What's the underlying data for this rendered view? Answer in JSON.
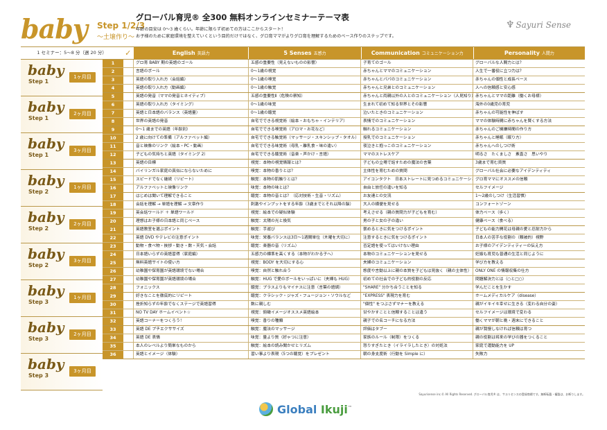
{
  "header": {
    "brand": "baby",
    "step": "Step 1/2/3",
    "subtitle": "〜土壌作り〜",
    "title": "グローバル育児® 全300 無料オンラインセミナーテーマ表",
    "desc1": "年齢の目安は 0〜3 歳くらい。年齢に限らず初めての方はここからスタート！",
    "desc2": "お子様のために家庭環境を整えていくという目的だけではなく、グロ育ママがよりグロ育を理解するためのベース作りのステップです。",
    "logo": "Sayuri Sense"
  },
  "table": {
    "week_label": "1 セミナー：5〜8 分（週 20 分）",
    "check": "✓",
    "categories": [
      {
        "en": "English",
        "jp": "英語力"
      },
      {
        "en": "5 Senses",
        "jp": "五感力"
      },
      {
        "en": "Communication",
        "jp": "コミュニケーション力"
      },
      {
        "en": "Personality",
        "jp": "人間力"
      }
    ],
    "groups": [
      {
        "baby": "baby",
        "step": "Step 1",
        "month": "1ヶ月目"
      },
      {
        "baby": "baby",
        "step": "Step 1",
        "month": "2ヶ月目"
      },
      {
        "baby": "baby",
        "step": "Step 1",
        "month": "3ヶ月目"
      },
      {
        "baby": "baby",
        "step": "Step 2",
        "month": "1ヶ月目"
      },
      {
        "baby": "baby",
        "step": "Step 2",
        "month": "2ヶ月目"
      },
      {
        "baby": "baby",
        "step": "Step 2",
        "month": "3ヶ月目"
      },
      {
        "baby": "baby",
        "step": "Step 3",
        "month": "1ヶ月目"
      },
      {
        "baby": "baby",
        "step": "Step 3",
        "month": "2ヶ月目"
      },
      {
        "baby": "baby",
        "step": "Step 3",
        "month": "3ヶ月目"
      }
    ],
    "rows": [
      {
        "n": "1",
        "e": "グロ育 BABY 期の英語のゴール",
        "s": "五感の重要性（見えないものの影響）",
        "c": "子育てのゴール",
        "p": "グローバルな人間力とは？"
      },
      {
        "n": "2",
        "e": "言語のボール",
        "s": "0〜1歳の視覚",
        "c": "赤ちゃんとママのコミュニケーション",
        "p": "人生で一番役に立つ力は？"
      },
      {
        "n": "3",
        "e": "英語の取り入れ方（会話編）",
        "s": "0〜1歳の嗅覚",
        "c": "赤ちゃんとパパのコミュニケーション",
        "p": "赤ちゃんの個性と成長ペース"
      },
      {
        "n": "4",
        "e": "英語の取り入れ方（動画編）",
        "s": "0〜1歳の触覚",
        "c": "赤ちゃんと兄弟とのコミュニケーション",
        "p": "人への信頼感と安心感"
      },
      {
        "n": "5",
        "e": "英語の発音（ママの発音とネイティブ）",
        "s": "五感の重要性Ⅱ（危険の察知）",
        "c": "赤ちゃんと両親以外の人とのコミュニケーション（人見知り）",
        "p": "赤ちゃんとママの距離（働くお母様）"
      },
      {
        "n": "6",
        "e": "英語の取り入れ方（タイミング）",
        "s": "0〜1歳の味覚",
        "c": "生まれて初めて知る世界とその影響",
        "p": "海外の0歳児の育児"
      },
      {
        "n": "7",
        "e": "英語と日本語のバランス（英語量）",
        "s": "0〜1歳の聴覚",
        "c": "泣いたときのコミュニケーション",
        "p": "赤ちゃんの可能性を伸ばす"
      },
      {
        "n": "8",
        "e": "世界の英語の発音",
        "s": "自宅でできる視覚術（絵本・おもちゃ・インテリア）",
        "c": "表情でのコミュニケーション",
        "p": "ママの体験時間に赤ちゃんを賢くする方法"
      },
      {
        "n": "9",
        "e": "0〜1 歳までの英語（年齢別）",
        "s": "自宅でできる嗅覚術（アロマ・お花など）",
        "c": "触れるコミュニケーション",
        "p": "赤ちゃんのご機嫌時間の作り方"
      },
      {
        "n": "10",
        "e": "2 歳に向けての準備（アルファベット編）",
        "s": "自宅でできる触覚術（マッサージ・スキンシップ・タオル）",
        "c": "授乳でのコミュニケーション",
        "p": "赤ちゃんと睡眠（眠り方）"
      },
      {
        "n": "11",
        "e": "音と映像のリンク（絵本・PC・動画）",
        "s": "自宅でできる味覚術（母乳・離乳食・味の違い）",
        "c": "夜泣きと抱っこのコミュニケーション",
        "p": "赤ちゃんへのしつけ術"
      },
      {
        "n": "12",
        "e": "子どもの気持ちと英語（タイミング 2）",
        "s": "自宅でできる聴覚術（音楽・声かけ・言語）",
        "c": "ママのストレスケア",
        "p": "明るさ　たくましさ　素直さ　思いやり"
      },
      {
        "n": "13",
        "e": "英語の目標",
        "s": "視覚：本物の視覚情報とは？",
        "c": "子どもの立場で話すための魔法の言葉",
        "p": "3歳まで育む資質"
      },
      {
        "n": "14",
        "e": "バイリンガル家庭の真似にならないために",
        "s": "嗅覚：本物の香りとは？",
        "c": "主体性を育むための質問",
        "p": "グローバル社会に必要なアイデンティティ"
      },
      {
        "n": "15",
        "e": "スピードでなく継続（リピート）",
        "s": "触覚：本物の肌触りとは？",
        "c": "アイコンタクト　日本ストレートに見つめるコミュニケーション",
        "p": "グロ育ママにオススメの信頼"
      },
      {
        "n": "16",
        "e": "アルファベットと映像リンク",
        "s": "味覚：本物の味とは？",
        "c": "自由と放任の違いを知る",
        "p": "セルフイメージ"
      },
      {
        "n": "17",
        "e": "はじめは聞いて理解できること",
        "s": "聴覚：本物の音とは？（応対技術・生音・リズム）",
        "c": "お友達との交流",
        "p": "1〜2歳のしつけ（生活習慣）"
      },
      {
        "n": "18",
        "e": "会話を理解 → 単語を理解 → 文章作り",
        "s": "刺激やインプットをする年齢（3歳までとそれ以降の脳）",
        "c": "大人の横便を見せる",
        "p": "コンフォートゾーン"
      },
      {
        "n": "19",
        "e": "英会話ワールド ＋ 単語ワールド",
        "s": "視覚：絵本での疑似体験",
        "c": "考えさせる（親の質問力が子どもを育む）",
        "p": "体力ベース（歩く）"
      },
      {
        "n": "20",
        "e": "理想はお子様の日本語と同じペース",
        "s": "触覚：太陽の光と換気",
        "c": "男の子と女の子の違い",
        "p": "健康ベース（食べる）"
      },
      {
        "n": "21",
        "e": "英語教室を選ぶポイント",
        "s": "触覚：手遊び",
        "c": "褒めるときに気をつけるポイント",
        "p": "子どもの能力開花は母親の愛と忍耐力から"
      },
      {
        "n": "22",
        "e": "英語 DVD やテレビの注意ポイント",
        "s": "味覚：栄養バランスは3日〜1週間単位（木曜を大切に）",
        "c": "注意するときに気をつけるポイント",
        "p": "日本人の苦手な役割の（頼被的）視野"
      },
      {
        "n": "23",
        "e": "動物・食べ物・挨拶・動き・数・天気・会話",
        "s": "聴覚：楽器の音（リズム）",
        "c": "否定語を使ってはいけない理由",
        "p": "お子様のアイデンティティーの伝え方"
      },
      {
        "n": "24",
        "e": "日本語いらずの英語習得（家庭編）",
        "s": "五感力の標準を高くする（本物がわかる子へ）",
        "c": "本物のコミュニケーションを見せる",
        "p": "妊娠も育児も普通の生活と同じように"
      },
      {
        "n": "25",
        "e": "無料英語サイトの使い方",
        "s": "視覚：BODY を大切にする心",
        "c": "夫婦のコミュニケーション",
        "p": "学び方を教える"
      },
      {
        "n": "26",
        "e": "幼稚園や保育園が英語環境でない場合",
        "s": "嗅覚：自然と触れ合う",
        "c": "態度や言動以上に親の本質を子どもは見抜く（親の主体性）",
        "p": "ONLY ONE の情報収集の仕方"
      },
      {
        "n": "27",
        "e": "幼稚園や保育園が英語環境の場合",
        "s": "触覚：HUG で愛のボールをいっぱいに（夫婦も HUG）",
        "c": "初めての社会での子ども的役割の反応",
        "p": "問題解決力とは（○と□○）"
      },
      {
        "n": "28",
        "e": "フォニックス",
        "s": "聴覚：プラスよりもマイナスに注意（言葉の語調）",
        "c": "\"SHARE\" 分かち合うことを知る",
        "p": "学んだことを生かす"
      },
      {
        "n": "29",
        "e": "好きなことを徹底的にリピート",
        "s": "聴覚：クラシック・ジャズ・フュージョン・ソウルなど",
        "c": "\"EXPRESS\" 表現力を育む",
        "p": "ホームメディカルケア（disease）"
      },
      {
        "n": "30",
        "e": "挫折知らずの年齢でなくステージで英語習得",
        "s": "数に親しむ",
        "c": "\"個性\" をつぶさずマナーを教える",
        "p": "親がイキイキ幸せに生きる（変わる自分の姿）"
      },
      {
        "n": "31",
        "e": "NO TV DAY ホームイベント☆",
        "s": "視覚：俯瞰イメージオススメ英語絵本",
        "c": "甘やかすことと信頼することは違う",
        "p": "セルフイメージは環境で変わる"
      },
      {
        "n": "32",
        "e": "英語コーナーをつくろう！",
        "s": "嗅覚：香りの種類",
        "c": "親子での名コーチになる方法",
        "p": "働くママが朝と晩・週末にできること"
      },
      {
        "n": "33",
        "e": "英語 DE プチエクササイズ",
        "s": "触覚：魔法のマッサージ",
        "c": "評価はタブー",
        "p": "親が我慢しなければ信頼は育つ"
      },
      {
        "n": "34",
        "e": "英語 DE 表情",
        "s": "味覚：量より質（好ゃつに注意）",
        "c": "家族のルール（制限）をつくる",
        "p": "親の役割は将来の学びの器をつくること"
      },
      {
        "n": "35",
        "e": "本人のレベルより簡単なものから",
        "s": "触覚：絵本の読み聞かせとリズム",
        "c": "怒りすぎたとき（イライラしたとき）の対処法",
        "p": "家庭で運動能力を UP"
      },
      {
        "n": "36",
        "e": "英語とイメージ（体験）",
        "s": "習い事より表現（5つの聴覚）をプレゼント",
        "c": "朝の身支度術（行動を Simple に）",
        "p": "失敗力"
      }
    ]
  },
  "footnote": "Sayurisense inc.© All Rights Reserved. グローバル育児® は、サユリセンスの登録商標です。無断転載・複製は、お断りします。",
  "footer": {
    "global": "Global",
    "ikuji": "Ikuji",
    "tm": "™"
  },
  "colors": {
    "accent": "#c8952a",
    "dark": "#7a5a18"
  }
}
